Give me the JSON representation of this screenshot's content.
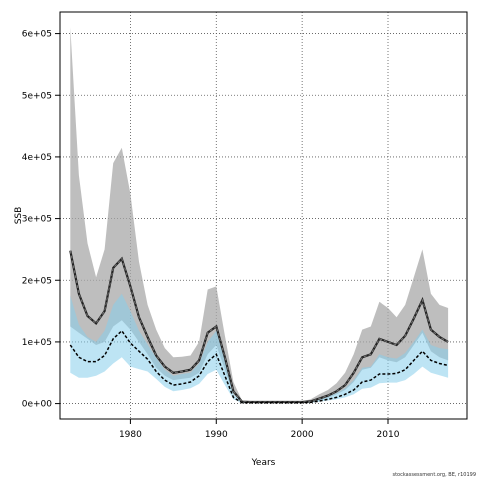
{
  "chart_data": {
    "type": "line",
    "xlabel": "Years",
    "ylabel": "SSB",
    "xlim": [
      1971.8,
      2019.2
    ],
    "ylim": [
      -25000,
      635000
    ],
    "x_ticks": [
      1980,
      1990,
      2000,
      2010
    ],
    "y_ticks": [
      {
        "value": 0,
        "label": "0e+00"
      },
      {
        "value": 100000,
        "label": "1e+05"
      },
      {
        "value": 200000,
        "label": "2e+05"
      },
      {
        "value": 300000,
        "label": "3e+05"
      },
      {
        "value": 400000,
        "label": "4e+05"
      },
      {
        "value": 500000,
        "label": "5e+05"
      },
      {
        "value": 600000,
        "label": "6e+05"
      }
    ],
    "grid": true,
    "x": [
      1973,
      1974,
      1975,
      1976,
      1977,
      1978,
      1979,
      1980,
      1981,
      1982,
      1983,
      1984,
      1985,
      1986,
      1987,
      1988,
      1989,
      1990,
      1991,
      1992,
      1993,
      1994,
      1995,
      1996,
      1997,
      1998,
      1999,
      2000,
      2001,
      2002,
      2003,
      2004,
      2005,
      2006,
      2007,
      2008,
      2009,
      2010,
      2011,
      2012,
      2013,
      2014,
      2015,
      2016,
      2017
    ],
    "series": [
      {
        "values": [
          248000,
          178000,
          142000,
          130000,
          150000,
          220000,
          235000,
          190000,
          140000,
          108000,
          78000,
          60000,
          50000,
          52000,
          55000,
          70000,
          115000,
          125000,
          75000,
          20000,
          3000,
          2500,
          2500,
          2500,
          2500,
          2500,
          2500,
          2500,
          3500,
          8000,
          13000,
          20000,
          30000,
          50000,
          75000,
          80000,
          105000,
          100000,
          95000,
          110000,
          138000,
          168000,
          120000,
          108000,
          100000
        ],
        "lower": [
          125000,
          115000,
          105000,
          95000,
          100000,
          125000,
          135000,
          120000,
          100000,
          80000,
          58000,
          45000,
          38000,
          40000,
          42000,
          50000,
          80000,
          95000,
          55000,
          15000,
          2000,
          2000,
          2000,
          2000,
          2000,
          2000,
          2000,
          2000,
          2500,
          5000,
          9000,
          15000,
          22000,
          35000,
          55000,
          58000,
          75000,
          70000,
          67000,
          75000,
          95000,
          115000,
          85000,
          75000,
          70000
        ],
        "upper": [
          610000,
          370000,
          260000,
          205000,
          250000,
          390000,
          415000,
          340000,
          230000,
          160000,
          120000,
          90000,
          75000,
          76000,
          78000,
          100000,
          185000,
          190000,
          110000,
          35000,
          5000,
          4000,
          4000,
          4000,
          4000,
          4000,
          4000,
          4000,
          7000,
          15000,
          22000,
          33000,
          50000,
          80000,
          120000,
          125000,
          165000,
          155000,
          140000,
          160000,
          205000,
          250000,
          178000,
          160000,
          155000
        ],
        "color": "#333333",
        "band_color": "#a8a8a8"
      },
      {
        "values": [
          95000,
          75000,
          68000,
          68000,
          78000,
          105000,
          118000,
          98000,
          85000,
          72000,
          52000,
          38000,
          30000,
          32000,
          35000,
          45000,
          68000,
          80000,
          45000,
          10000,
          1500,
          1500,
          1500,
          1500,
          1500,
          1500,
          1500,
          1500,
          2000,
          4000,
          7000,
          10000,
          15000,
          22000,
          35000,
          38000,
          48000,
          48000,
          49000,
          55000,
          70000,
          85000,
          70000,
          65000,
          62000
        ],
        "lower": [
          50000,
          42000,
          42000,
          45000,
          52000,
          65000,
          75000,
          60000,
          56000,
          52000,
          40000,
          27000,
          20000,
          22000,
          25000,
          32000,
          48000,
          55000,
          30000,
          7000,
          1000,
          1000,
          1000,
          1000,
          1000,
          1000,
          1000,
          1000,
          1500,
          3000,
          5000,
          7000,
          10000,
          15000,
          24000,
          26000,
          33000,
          34000,
          34000,
          38000,
          48000,
          60000,
          50000,
          46000,
          42000
        ],
        "upper": [
          175000,
          128000,
          108000,
          100000,
          118000,
          160000,
          178000,
          150000,
          118000,
          96000,
          74000,
          55000,
          45000,
          48000,
          50000,
          65000,
          100000,
          118000,
          70000,
          15000,
          2500,
          2500,
          2500,
          2500,
          2500,
          2500,
          2500,
          2500,
          3500,
          6500,
          11000,
          17000,
          25000,
          38000,
          58000,
          60000,
          80000,
          75000,
          73000,
          82000,
          100000,
          120000,
          95000,
          90000,
          88000
        ],
        "color": "#000000",
        "band_color": "#87ceeb"
      }
    ]
  },
  "footer": "stockassessment.org, BE, r10199"
}
